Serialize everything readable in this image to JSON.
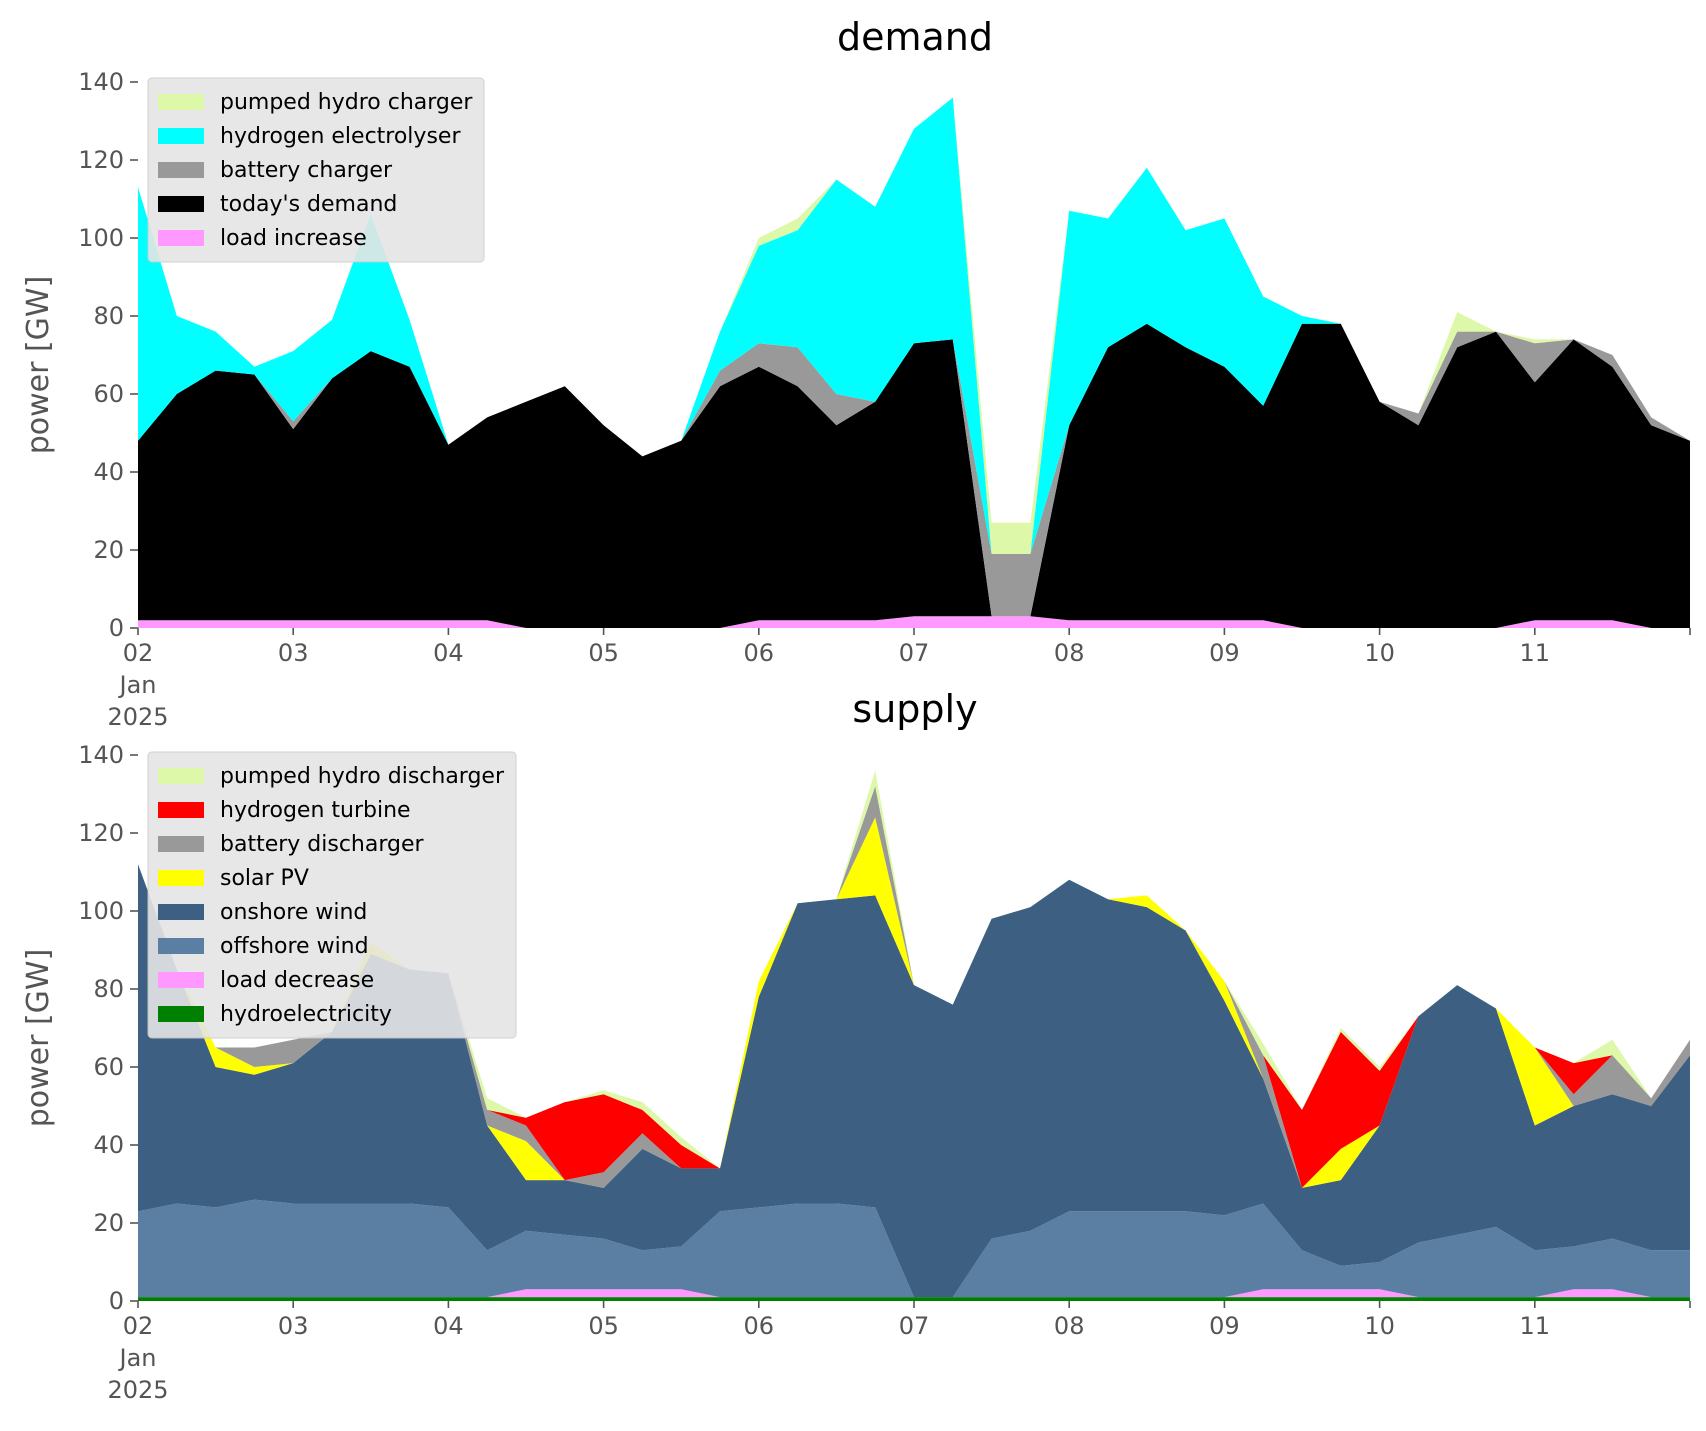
{
  "chart_data": [
    {
      "type": "area",
      "title": "demand",
      "ylabel": "power [GW]",
      "ylim": [
        0,
        140
      ],
      "yticks": [
        0,
        20,
        40,
        60,
        80,
        100,
        120,
        140
      ],
      "x_start": "2025-01-02",
      "x_end": "2025-01-12",
      "xticks": [
        "02",
        "03",
        "04",
        "05",
        "06",
        "07",
        "08",
        "09",
        "10",
        "11"
      ],
      "xtick_sub": [
        "Jan",
        "2025"
      ],
      "legend_position": "top-left",
      "x": [
        "2025-01-02 00:00",
        "2025-01-02 06:00",
        "2025-01-02 12:00",
        "2025-01-02 18:00",
        "2025-01-03 00:00",
        "2025-01-03 06:00",
        "2025-01-03 12:00",
        "2025-01-03 18:00",
        "2025-01-04 00:00",
        "2025-01-04 06:00",
        "2025-01-04 12:00",
        "2025-01-04 18:00",
        "2025-01-05 00:00",
        "2025-01-05 06:00",
        "2025-01-05 12:00",
        "2025-01-05 18:00",
        "2025-01-06 00:00",
        "2025-01-06 06:00",
        "2025-01-06 12:00",
        "2025-01-06 18:00",
        "2025-01-07 00:00",
        "2025-01-07 06:00",
        "2025-01-07 12:00",
        "2025-01-07 18:00",
        "2025-01-08 00:00",
        "2025-01-08 06:00",
        "2025-01-08 12:00",
        "2025-01-08 18:00",
        "2025-01-09 00:00",
        "2025-01-09 06:00",
        "2025-01-09 12:00",
        "2025-01-09 18:00",
        "2025-01-10 00:00",
        "2025-01-10 06:00",
        "2025-01-10 12:00",
        "2025-01-10 18:00",
        "2025-01-11 00:00",
        "2025-01-11 06:00",
        "2025-01-11 12:00",
        "2025-01-11 18:00",
        "2025-01-12 00:00"
      ],
      "series": [
        {
          "name": "load increase",
          "color": "#ff99ff",
          "values": [
            2,
            2,
            2,
            2,
            2,
            2,
            2,
            2,
            2,
            2,
            0,
            0,
            0,
            0,
            0,
            0,
            2,
            2,
            2,
            2,
            3,
            3,
            3,
            3,
            2,
            2,
            2,
            2,
            2,
            2,
            0,
            0,
            0,
            0,
            0,
            0,
            2,
            2,
            2,
            0,
            0
          ]
        },
        {
          "name": "today's demand",
          "color": "#000000",
          "values": [
            46,
            58,
            64,
            63,
            49,
            62,
            69,
            65,
            45,
            52,
            58,
            62,
            52,
            44,
            48,
            62,
            65,
            60,
            50,
            56,
            70,
            71,
            0,
            0,
            50,
            70,
            76,
            70,
            65,
            55,
            78,
            78,
            58,
            52,
            72,
            76,
            61,
            72,
            65,
            52,
            48
          ]
        },
        {
          "name": "battery charger",
          "color": "#999999",
          "values": [
            0,
            0,
            0,
            0,
            2,
            0,
            0,
            0,
            0,
            0,
            0,
            0,
            0,
            0,
            0,
            4,
            6,
            10,
            8,
            0,
            0,
            0,
            16,
            16,
            0,
            0,
            0,
            0,
            0,
            0,
            0,
            0,
            0,
            3,
            4,
            0,
            10,
            0,
            3,
            2,
            0
          ]
        },
        {
          "name": "hydrogen electrolyser",
          "color": "#00ffff",
          "values": [
            65,
            20,
            10,
            2,
            18,
            15,
            35,
            12,
            0,
            0,
            0,
            0,
            0,
            0,
            0,
            10,
            25,
            30,
            55,
            50,
            55,
            62,
            0,
            0,
            55,
            33,
            40,
            30,
            38,
            28,
            2,
            0,
            0,
            0,
            0,
            0,
            0,
            0,
            0,
            0,
            0
          ]
        },
        {
          "name": "pumped hydro charger",
          "color": "#dcf8a8",
          "values": [
            0,
            0,
            0,
            0,
            0,
            0,
            0,
            0,
            0,
            0,
            0,
            0,
            0,
            0,
            0,
            0,
            2,
            3,
            0,
            0,
            0,
            0,
            8,
            8,
            0,
            0,
            0,
            0,
            0,
            0,
            0,
            0,
            0,
            0,
            5,
            0,
            1,
            0,
            0,
            0,
            0
          ]
        }
      ]
    },
    {
      "type": "area",
      "title": "supply",
      "ylabel": "power [GW]",
      "ylim": [
        0,
        140
      ],
      "yticks": [
        0,
        20,
        40,
        60,
        80,
        100,
        120,
        140
      ],
      "x_start": "2025-01-02",
      "x_end": "2025-01-12",
      "xticks": [
        "02",
        "03",
        "04",
        "05",
        "06",
        "07",
        "08",
        "09",
        "10",
        "11"
      ],
      "xtick_sub": [
        "Jan",
        "2025"
      ],
      "legend_position": "top-left",
      "x": [
        "2025-01-02 00:00",
        "2025-01-02 06:00",
        "2025-01-02 12:00",
        "2025-01-02 18:00",
        "2025-01-03 00:00",
        "2025-01-03 06:00",
        "2025-01-03 12:00",
        "2025-01-03 18:00",
        "2025-01-04 00:00",
        "2025-01-04 06:00",
        "2025-01-04 12:00",
        "2025-01-04 18:00",
        "2025-01-05 00:00",
        "2025-01-05 06:00",
        "2025-01-05 12:00",
        "2025-01-05 18:00",
        "2025-01-06 00:00",
        "2025-01-06 06:00",
        "2025-01-06 12:00",
        "2025-01-06 18:00",
        "2025-01-07 00:00",
        "2025-01-07 06:00",
        "2025-01-07 12:00",
        "2025-01-07 18:00",
        "2025-01-08 00:00",
        "2025-01-08 06:00",
        "2025-01-08 12:00",
        "2025-01-08 18:00",
        "2025-01-09 00:00",
        "2025-01-09 06:00",
        "2025-01-09 12:00",
        "2025-01-09 18:00",
        "2025-01-10 00:00",
        "2025-01-10 06:00",
        "2025-01-10 12:00",
        "2025-01-10 18:00",
        "2025-01-11 00:00",
        "2025-01-11 06:00",
        "2025-01-11 12:00",
        "2025-01-11 18:00",
        "2025-01-12 00:00"
      ],
      "series": [
        {
          "name": "hydroelectricity",
          "color": "#008000",
          "values": [
            1,
            1,
            1,
            1,
            1,
            1,
            1,
            1,
            1,
            1,
            1,
            1,
            1,
            1,
            1,
            1,
            1,
            1,
            1,
            1,
            1,
            1,
            1,
            1,
            1,
            1,
            1,
            1,
            1,
            1,
            1,
            1,
            1,
            1,
            1,
            1,
            1,
            1,
            1,
            1,
            1
          ]
        },
        {
          "name": "load decrease",
          "color": "#ff99ff",
          "values": [
            0,
            0,
            0,
            0,
            0,
            0,
            0,
            0,
            0,
            0,
            2,
            2,
            2,
            2,
            2,
            0,
            0,
            0,
            0,
            0,
            0,
            0,
            0,
            0,
            0,
            0,
            0,
            0,
            0,
            2,
            2,
            2,
            2,
            0,
            0,
            0,
            0,
            2,
            2,
            0,
            0
          ]
        },
        {
          "name": "offshore wind",
          "color": "#5b7fa3",
          "values": [
            22,
            24,
            23,
            25,
            24,
            24,
            24,
            24,
            23,
            12,
            15,
            14,
            13,
            10,
            11,
            22,
            23,
            24,
            24,
            23,
            0,
            0,
            15,
            17,
            22,
            22,
            22,
            22,
            21,
            22,
            10,
            6,
            7,
            14,
            16,
            18,
            12,
            11,
            13,
            12,
            12
          ]
        },
        {
          "name": "onshore wind",
          "color": "#3c5f82",
          "values": [
            89,
            60,
            36,
            32,
            36,
            44,
            64,
            60,
            60,
            32,
            13,
            14,
            13,
            26,
            20,
            11,
            54,
            77,
            78,
            80,
            80,
            75,
            82,
            83,
            85,
            80,
            78,
            72,
            55,
            32,
            16,
            22,
            35,
            58,
            64,
            56,
            32,
            36,
            37,
            37,
            50
          ]
        },
        {
          "name": "solar PV",
          "color": "#ffff00",
          "values": [
            0,
            0,
            5,
            2,
            0,
            0,
            3,
            0,
            0,
            0,
            10,
            0,
            0,
            0,
            0,
            0,
            4,
            0,
            0,
            20,
            0,
            0,
            0,
            0,
            0,
            0,
            3,
            0,
            5,
            0,
            0,
            8,
            0,
            0,
            0,
            0,
            20,
            0,
            0,
            0,
            0
          ]
        },
        {
          "name": "battery discharger",
          "color": "#999999",
          "values": [
            0,
            0,
            0,
            5,
            6,
            0,
            0,
            0,
            0,
            4,
            4,
            0,
            4,
            4,
            0,
            0,
            0,
            0,
            0,
            8,
            0,
            0,
            0,
            0,
            0,
            0,
            0,
            0,
            0,
            6,
            0,
            0,
            0,
            0,
            0,
            0,
            0,
            3,
            10,
            2,
            4
          ]
        },
        {
          "name": "hydrogen turbine",
          "color": "#ff0000",
          "values": [
            0,
            0,
            0,
            0,
            0,
            0,
            0,
            0,
            0,
            0,
            2,
            20,
            20,
            6,
            6,
            0,
            0,
            0,
            0,
            0,
            0,
            0,
            0,
            0,
            0,
            0,
            0,
            0,
            0,
            0,
            20,
            30,
            14,
            0,
            0,
            0,
            0,
            8,
            0,
            0,
            0
          ]
        },
        {
          "name": "pumped hydro discharger",
          "color": "#dcf8a8",
          "values": [
            0,
            0,
            0,
            0,
            0,
            0,
            0,
            0,
            0,
            3,
            0,
            0,
            1,
            2,
            2,
            0,
            0,
            0,
            0,
            4,
            0,
            0,
            0,
            0,
            0,
            0,
            0,
            0,
            0,
            3,
            0,
            1,
            1,
            0,
            0,
            0,
            0,
            0,
            4,
            0,
            0
          ]
        }
      ]
    }
  ]
}
